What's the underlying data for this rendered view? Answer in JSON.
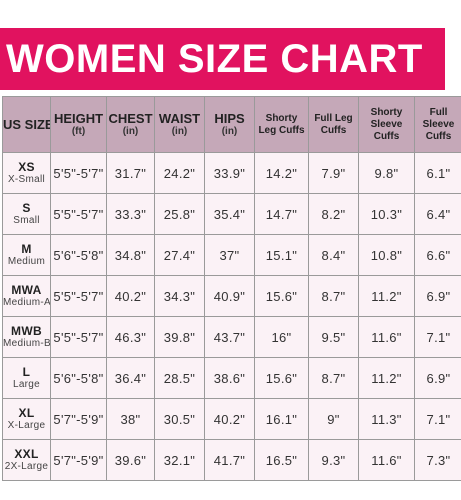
{
  "title": "WOMEN SIZE CHART",
  "colors": {
    "banner": "#e1125f",
    "header": "#c5a8b8",
    "cell": "#fbf2f6"
  },
  "headers": [
    {
      "main": "US SIZE",
      "unit": "",
      "small": false
    },
    {
      "main": "HEIGHT",
      "unit": "(ft)",
      "small": false
    },
    {
      "main": "CHEST",
      "unit": "(in)",
      "small": false
    },
    {
      "main": "WAIST",
      "unit": "(in)",
      "small": false
    },
    {
      "main": "HIPS",
      "unit": "(in)",
      "small": false
    },
    {
      "main": "Shorty Leg Cuffs",
      "unit": "",
      "small": true
    },
    {
      "main": "Full Leg Cuffs",
      "unit": "",
      "small": true
    },
    {
      "main": "Shorty Sleeve Cuffs",
      "unit": "",
      "small": true
    },
    {
      "main": "Full Sleeve Cuffs",
      "unit": "",
      "small": true
    }
  ],
  "rows": [
    {
      "code": "XS",
      "name": "X-Small",
      "height": "5'5\"-5'7\"",
      "chest": "31.7\"",
      "waist": "24.2\"",
      "hips": "33.9\"",
      "shorty_leg": "14.2\"",
      "full_leg": "7.9\"",
      "shorty_sleeve": "9.8\"",
      "full_sleeve": "6.1\""
    },
    {
      "code": "S",
      "name": "Small",
      "height": "5'5\"-5'7\"",
      "chest": "33.3\"",
      "waist": "25.8\"",
      "hips": "35.4\"",
      "shorty_leg": "14.7\"",
      "full_leg": "8.2\"",
      "shorty_sleeve": "10.3\"",
      "full_sleeve": "6.4\""
    },
    {
      "code": "M",
      "name": "Medium",
      "height": "5'6\"-5'8\"",
      "chest": "34.8\"",
      "waist": "27.4\"",
      "hips": "37\"",
      "shorty_leg": "15.1\"",
      "full_leg": "8.4\"",
      "shorty_sleeve": "10.8\"",
      "full_sleeve": "6.6\""
    },
    {
      "code": "MWA",
      "name": "Medium-A",
      "height": "5'5\"-5'7\"",
      "chest": "40.2\"",
      "waist": "34.3\"",
      "hips": "40.9\"",
      "shorty_leg": "15.6\"",
      "full_leg": "8.7\"",
      "shorty_sleeve": "11.2\"",
      "full_sleeve": "6.9\""
    },
    {
      "code": "MWB",
      "name": "Medium-B",
      "height": "5'5\"-5'7\"",
      "chest": "46.3\"",
      "waist": "39.8\"",
      "hips": "43.7\"",
      "shorty_leg": "16\"",
      "full_leg": "9.5\"",
      "shorty_sleeve": "11.6\"",
      "full_sleeve": "7.1\""
    },
    {
      "code": "L",
      "name": "Large",
      "height": "5'6\"-5'8\"",
      "chest": "36.4\"",
      "waist": "28.5\"",
      "hips": "38.6\"",
      "shorty_leg": "15.6\"",
      "full_leg": "8.7\"",
      "shorty_sleeve": "11.2\"",
      "full_sleeve": "6.9\""
    },
    {
      "code": "XL",
      "name": "X-Large",
      "height": "5'7\"-5'9\"",
      "chest": "38\"",
      "waist": "30.5\"",
      "hips": "40.2\"",
      "shorty_leg": "16.1\"",
      "full_leg": "9\"",
      "shorty_sleeve": "11.3\"",
      "full_sleeve": "7.1\""
    },
    {
      "code": "XXL",
      "name": "2X-Large",
      "height": "5'7\"-5'9\"",
      "chest": "39.6\"",
      "waist": "32.1\"",
      "hips": "41.7\"",
      "shorty_leg": "16.5\"",
      "full_leg": "9.3\"",
      "shorty_sleeve": "11.6\"",
      "full_sleeve": "7.3\""
    }
  ]
}
